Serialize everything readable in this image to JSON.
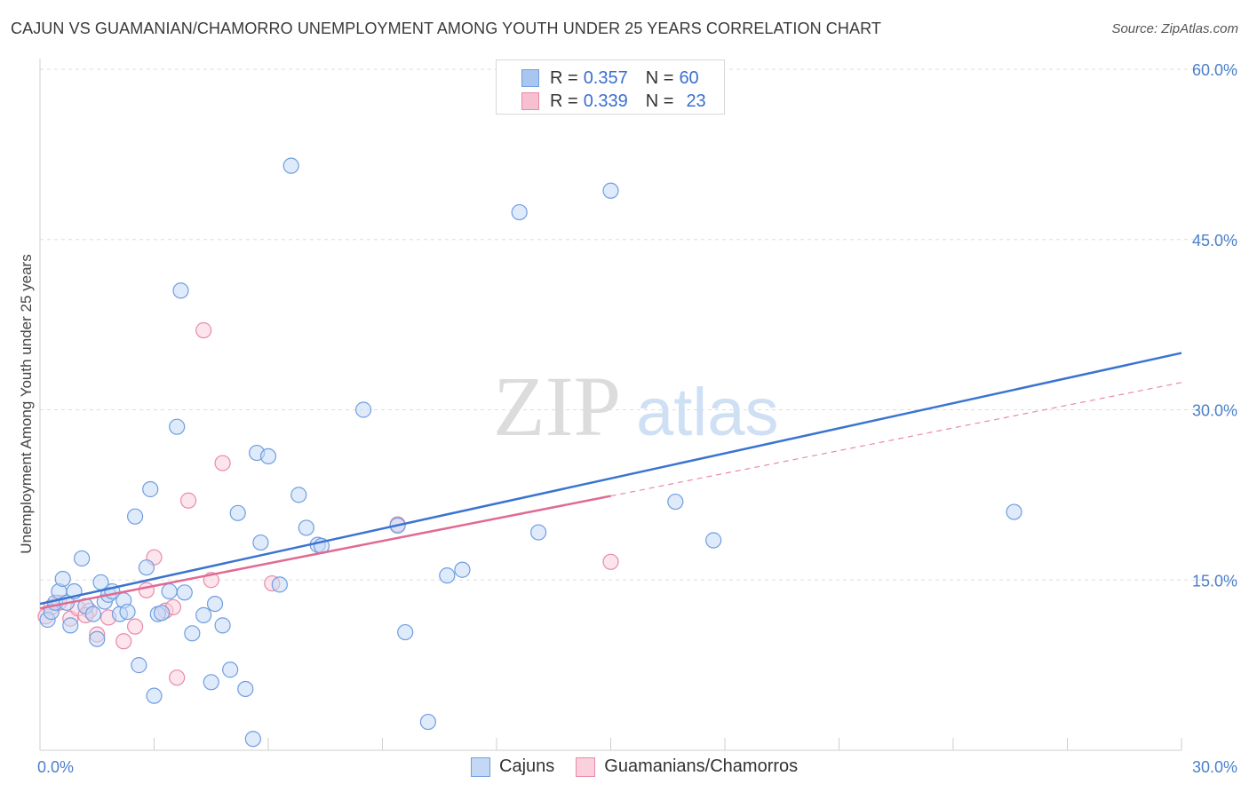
{
  "header": {
    "title": "CAJUN VS GUAMANIAN/CHAMORRO UNEMPLOYMENT AMONG YOUTH UNDER 25 YEARS CORRELATION CHART",
    "source": "Source: ZipAtlas.com"
  },
  "watermark": {
    "part1": "ZIP",
    "part2": "atlas"
  },
  "legend": {
    "r_label": "R =",
    "n_label": "N =",
    "rows": [
      {
        "r": "0.357",
        "n": "60",
        "color": "#a9c6f0",
        "border": "#6f9ee0"
      },
      {
        "r": "0.339",
        "n": "23",
        "color": "#f7c0d0",
        "border": "#e98aa8"
      }
    ]
  },
  "bottom_legend": [
    {
      "label": "Cajuns",
      "color": "#c4d8f5",
      "border": "#6f9ee0"
    },
    {
      "label": "Guamanians/Chamorros",
      "color": "#f9d0dc",
      "border": "#e98aa8"
    }
  ],
  "chart_data": {
    "type": "scatter",
    "ylabel": "Unemployment Among Youth under 25 years",
    "xlim": [
      0,
      30
    ],
    "ylim": [
      0,
      60
    ],
    "x_ticks": [
      "0.0%",
      "30.0%"
    ],
    "y_ticks": [
      {
        "value": 15,
        "label": "15.0%"
      },
      {
        "value": 30,
        "label": "30.0%"
      },
      {
        "value": 45,
        "label": "45.0%"
      },
      {
        "value": 60,
        "label": "60.0%"
      }
    ],
    "grid": true,
    "legend_position": "top-center",
    "series": [
      {
        "name": "Cajuns",
        "color": "#6f9ee0",
        "fill": "#c4d8f5",
        "points": [
          [
            0.2,
            11.5
          ],
          [
            0.3,
            12.2
          ],
          [
            0.4,
            13.0
          ],
          [
            0.5,
            14.0
          ],
          [
            0.6,
            15.1
          ],
          [
            0.7,
            13.0
          ],
          [
            0.8,
            11.0
          ],
          [
            0.9,
            14.0
          ],
          [
            1.1,
            16.9
          ],
          [
            1.2,
            12.7
          ],
          [
            1.4,
            12.0
          ],
          [
            1.5,
            9.8
          ],
          [
            1.6,
            14.8
          ],
          [
            1.7,
            13.1
          ],
          [
            1.8,
            13.7
          ],
          [
            1.9,
            14.0
          ],
          [
            2.1,
            12.0
          ],
          [
            2.2,
            13.2
          ],
          [
            2.3,
            12.2
          ],
          [
            2.5,
            20.6
          ],
          [
            2.6,
            7.5
          ],
          [
            2.8,
            16.1
          ],
          [
            2.9,
            23.0
          ],
          [
            3.0,
            4.8
          ],
          [
            3.1,
            12.0
          ],
          [
            3.2,
            12.1
          ],
          [
            3.4,
            14.0
          ],
          [
            3.6,
            28.5
          ],
          [
            3.7,
            40.5
          ],
          [
            3.8,
            13.9
          ],
          [
            4.0,
            10.3
          ],
          [
            4.3,
            11.9
          ],
          [
            4.5,
            6.0
          ],
          [
            4.6,
            12.9
          ],
          [
            4.8,
            11.0
          ],
          [
            5.0,
            7.1
          ],
          [
            5.2,
            20.9
          ],
          [
            5.4,
            5.4
          ],
          [
            5.6,
            1.0
          ],
          [
            5.7,
            26.2
          ],
          [
            5.8,
            18.3
          ],
          [
            6.0,
            25.9
          ],
          [
            6.3,
            14.6
          ],
          [
            6.6,
            51.5
          ],
          [
            6.8,
            22.5
          ],
          [
            7.0,
            19.6
          ],
          [
            7.3,
            18.1
          ],
          [
            7.4,
            18.0
          ],
          [
            8.5,
            30.0
          ],
          [
            9.4,
            19.8
          ],
          [
            9.6,
            10.4
          ],
          [
            10.2,
            2.5
          ],
          [
            10.7,
            15.4
          ],
          [
            11.1,
            15.9
          ],
          [
            12.6,
            47.4
          ],
          [
            13.1,
            19.2
          ],
          [
            15.0,
            49.3
          ],
          [
            16.7,
            21.9
          ],
          [
            17.7,
            18.5
          ],
          [
            25.6,
            21.0
          ]
        ],
        "trend": {
          "x": [
            0,
            30
          ],
          "y": [
            12.9,
            35.0
          ]
        }
      },
      {
        "name": "Guamanians/Chamorros",
        "color": "#e98aa8",
        "fill": "#f9d0dc",
        "points": [
          [
            0.15,
            11.8
          ],
          [
            0.3,
            12.6
          ],
          [
            0.5,
            13.0
          ],
          [
            0.8,
            11.6
          ],
          [
            1.0,
            12.5
          ],
          [
            1.3,
            12.3
          ],
          [
            1.5,
            10.2
          ],
          [
            1.8,
            11.7
          ],
          [
            2.2,
            9.6
          ],
          [
            2.5,
            10.9
          ],
          [
            2.8,
            14.1
          ],
          [
            3.0,
            17.0
          ],
          [
            3.3,
            12.3
          ],
          [
            3.5,
            12.6
          ],
          [
            3.6,
            6.4
          ],
          [
            3.9,
            22.0
          ],
          [
            4.3,
            37.0
          ],
          [
            4.5,
            15.0
          ],
          [
            4.8,
            25.3
          ],
          [
            6.1,
            14.7
          ],
          [
            9.4,
            19.9
          ],
          [
            15.0,
            16.6
          ],
          [
            1.2,
            11.9
          ]
        ],
        "trend": {
          "x": [
            0,
            15.0
          ],
          "y": [
            12.5,
            22.4
          ]
        },
        "trend_extension": {
          "x": [
            15.0,
            30
          ],
          "y": [
            22.4,
            32.4
          ]
        }
      }
    ]
  }
}
